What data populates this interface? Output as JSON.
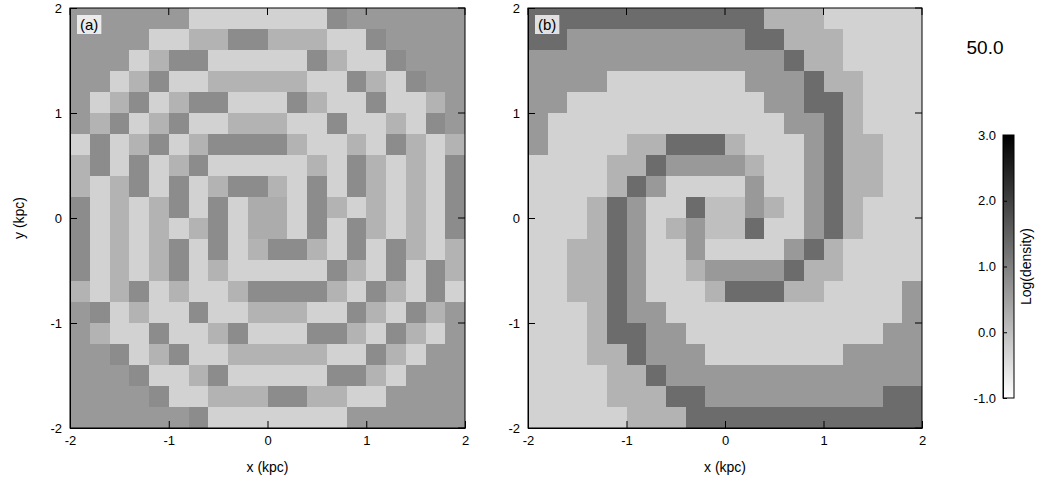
{
  "chart_data": [
    {
      "type": "heatmap",
      "title": "(a)",
      "xlabel": "x (kpc)",
      "ylabel": "y (kpc)",
      "xlim": [
        -2,
        2
      ],
      "ylim": [
        -2,
        2
      ],
      "xticks": [
        -2,
        -1,
        0,
        1,
        2
      ],
      "yticks": [
        -2,
        -1,
        0,
        1,
        2
      ],
      "x": [
        -1.9,
        -1.7,
        -1.5,
        -1.3,
        -1.1,
        -0.9,
        -0.7,
        -0.5,
        -0.3,
        -0.1,
        0.1,
        0.3,
        0.5,
        0.7,
        0.9,
        1.1,
        1.3,
        1.5,
        1.7,
        1.9
      ],
      "y": [
        1.9,
        1.7,
        1.5,
        1.3,
        1.1,
        0.9,
        0.7,
        0.5,
        0.3,
        0.1,
        -0.1,
        -0.3,
        -0.5,
        -0.7,
        -0.9,
        -1.1,
        -1.3,
        -1.5,
        -1.7,
        -1.9
      ],
      "z": [
        [
          0.6,
          0.6,
          0.6,
          0.6,
          0.6,
          0.6,
          -0.3,
          -0.3,
          -0.3,
          -0.3,
          -0.3,
          -0.3,
          -0.3,
          0.8,
          0.6,
          0.6,
          0.6,
          0.6,
          0.6,
          0.6
        ],
        [
          0.6,
          0.6,
          0.6,
          0.6,
          -0.3,
          -0.3,
          0.2,
          0.2,
          0.8,
          0.8,
          0.2,
          0.2,
          0.2,
          -0.3,
          -0.3,
          0.8,
          0.6,
          0.6,
          0.6,
          0.6
        ],
        [
          0.6,
          0.6,
          0.6,
          -0.3,
          0.2,
          0.8,
          0.8,
          -0.3,
          -0.3,
          -0.3,
          -0.3,
          -0.3,
          0.8,
          0.2,
          -0.3,
          -0.3,
          0.8,
          0.6,
          0.6,
          0.6
        ],
        [
          0.6,
          0.6,
          -0.3,
          0.2,
          0.8,
          -0.3,
          -0.3,
          0.2,
          0.2,
          0.2,
          0.2,
          0.2,
          -0.3,
          -0.3,
          0.8,
          0.2,
          -0.3,
          0.8,
          0.6,
          0.6
        ],
        [
          0.6,
          -0.3,
          0.2,
          0.8,
          -0.3,
          0.2,
          0.8,
          0.8,
          -0.3,
          -0.3,
          -0.3,
          0.8,
          0.2,
          -0.3,
          -0.3,
          0.8,
          -0.3,
          -0.3,
          0.2,
          0.6
        ],
        [
          0.6,
          0.2,
          0.8,
          -0.3,
          0.2,
          0.8,
          -0.3,
          -0.3,
          0.2,
          0.2,
          0.2,
          -0.3,
          -0.3,
          0.8,
          -0.3,
          -0.3,
          0.2,
          -0.3,
          0.8,
          0.6
        ],
        [
          -0.3,
          0.8,
          -0.3,
          0.2,
          0.8,
          -0.3,
          0.2,
          0.8,
          0.8,
          0.8,
          0.8,
          0.2,
          -0.3,
          -0.3,
          0.2,
          -0.3,
          0.8,
          0.2,
          -0.3,
          0.2
        ],
        [
          0.2,
          0.8,
          -0.3,
          0.8,
          -0.3,
          0.2,
          0.8,
          -0.3,
          -0.3,
          -0.3,
          -0.3,
          -0.3,
          0.2,
          -0.3,
          0.8,
          0.2,
          -0.3,
          0.2,
          -0.3,
          0.8
        ],
        [
          0.2,
          -0.3,
          0.2,
          0.8,
          -0.3,
          0.8,
          -0.3,
          0.2,
          0.8,
          0.8,
          0.2,
          -0.3,
          0.8,
          -0.3,
          0.8,
          0.2,
          -0.3,
          0.2,
          -0.3,
          0.8
        ],
        [
          0.8,
          -0.3,
          0.2,
          -0.3,
          0.2,
          0.8,
          -0.3,
          0.8,
          -0.3,
          0.3,
          0.3,
          -0.3,
          0.8,
          0.2,
          -0.3,
          0.2,
          -0.3,
          0.2,
          -0.3,
          0.8
        ],
        [
          0.8,
          -0.3,
          0.2,
          -0.3,
          0.2,
          -0.3,
          0.2,
          0.8,
          -0.3,
          0.3,
          0.3,
          -0.3,
          0.8,
          -0.3,
          0.8,
          0.2,
          -0.3,
          0.2,
          -0.3,
          0.8
        ],
        [
          0.8,
          -0.3,
          0.2,
          -0.3,
          0.2,
          0.8,
          -0.3,
          0.8,
          -0.3,
          0.2,
          0.8,
          0.8,
          0.2,
          -0.3,
          0.8,
          -0.3,
          0.8,
          0.2,
          -0.3,
          0.2
        ],
        [
          0.8,
          -0.3,
          0.2,
          -0.3,
          0.2,
          0.8,
          -0.3,
          0.2,
          -0.3,
          -0.3,
          -0.3,
          -0.3,
          -0.3,
          0.8,
          0.2,
          -0.3,
          0.8,
          -0.3,
          0.8,
          0.2
        ],
        [
          0.2,
          -0.3,
          0.2,
          0.8,
          -0.3,
          0.2,
          -0.3,
          -0.3,
          0.2,
          0.8,
          0.8,
          0.8,
          0.8,
          0.2,
          -0.3,
          0.8,
          0.2,
          -0.3,
          0.8,
          -0.3
        ],
        [
          0.6,
          0.8,
          -0.3,
          0.2,
          -0.3,
          -0.3,
          0.8,
          -0.3,
          -0.3,
          0.2,
          0.2,
          0.2,
          -0.3,
          -0.3,
          0.8,
          0.2,
          -0.3,
          0.8,
          0.2,
          0.6
        ],
        [
          0.6,
          0.2,
          -0.3,
          -0.3,
          0.8,
          -0.3,
          -0.3,
          0.2,
          0.8,
          -0.3,
          -0.3,
          -0.3,
          0.8,
          0.8,
          0.2,
          -0.3,
          0.8,
          0.2,
          -0.3,
          0.6
        ],
        [
          0.6,
          0.6,
          0.8,
          -0.3,
          0.2,
          0.8,
          -0.3,
          -0.3,
          0.2,
          0.2,
          0.2,
          0.2,
          0.2,
          -0.3,
          -0.3,
          0.8,
          0.2,
          -0.3,
          0.6,
          0.6
        ],
        [
          0.6,
          0.6,
          0.6,
          0.8,
          -0.3,
          -0.3,
          0.2,
          0.8,
          -0.3,
          -0.3,
          -0.3,
          -0.3,
          -0.3,
          0.8,
          0.8,
          0.2,
          -0.3,
          0.6,
          0.6,
          0.6
        ],
        [
          0.6,
          0.6,
          0.6,
          0.6,
          0.8,
          -0.3,
          -0.3,
          0.2,
          0.2,
          0.2,
          0.8,
          0.8,
          0.2,
          0.2,
          -0.3,
          -0.3,
          0.6,
          0.6,
          0.6,
          0.6
        ],
        [
          0.6,
          0.6,
          0.6,
          0.6,
          0.6,
          0.6,
          0.8,
          -0.3,
          -0.3,
          -0.3,
          -0.3,
          -0.3,
          -0.3,
          -0.3,
          0.6,
          0.6,
          0.6,
          0.6,
          0.6,
          0.6
        ]
      ]
    },
    {
      "type": "heatmap",
      "title": "(b)",
      "xlabel": "x (kpc)",
      "xlim": [
        -2,
        2
      ],
      "ylim": [
        -2,
        2
      ],
      "xticks": [
        -2,
        -1,
        0,
        1,
        2
      ],
      "yticks": [
        -2,
        -1,
        0,
        1,
        2
      ],
      "x": [
        -1.9,
        -1.7,
        -1.5,
        -1.3,
        -1.1,
        -0.9,
        -0.7,
        -0.5,
        -0.3,
        -0.1,
        0.1,
        0.3,
        0.5,
        0.7,
        0.9,
        1.1,
        1.3,
        1.5,
        1.7,
        1.9
      ],
      "y": [
        1.9,
        1.7,
        1.5,
        1.3,
        1.1,
        0.9,
        0.7,
        0.5,
        0.3,
        0.1,
        -0.1,
        -0.3,
        -0.5,
        -0.7,
        -0.9,
        -1.1,
        -1.3,
        -1.5,
        -1.7,
        -1.9
      ],
      "z": [
        [
          1.3,
          1.3,
          1.3,
          1.3,
          1.3,
          1.3,
          1.3,
          1.3,
          1.3,
          1.3,
          1.3,
          1.3,
          0.2,
          0.2,
          0.2,
          -0.3,
          -0.3,
          -0.3,
          -0.3,
          -0.3
        ],
        [
          1.3,
          1.3,
          0.6,
          0.6,
          0.6,
          0.6,
          0.6,
          0.6,
          0.6,
          0.6,
          0.6,
          1.3,
          1.3,
          0.2,
          0.2,
          0.2,
          -0.3,
          -0.3,
          -0.3,
          -0.3
        ],
        [
          0.6,
          0.6,
          0.6,
          0.6,
          0.6,
          0.6,
          0.6,
          0.6,
          0.6,
          0.6,
          0.6,
          0.6,
          0.6,
          1.3,
          0.2,
          0.2,
          -0.3,
          -0.3,
          -0.3,
          -0.3
        ],
        [
          0.6,
          0.6,
          0.6,
          0.6,
          -0.3,
          -0.3,
          -0.3,
          -0.3,
          -0.3,
          -0.3,
          -0.3,
          0.6,
          0.6,
          0.6,
          1.3,
          0.2,
          0.2,
          -0.3,
          -0.3,
          -0.3
        ],
        [
          0.6,
          0.6,
          -0.3,
          -0.3,
          -0.3,
          -0.3,
          -0.3,
          -0.3,
          -0.3,
          -0.3,
          -0.3,
          -0.3,
          0.6,
          0.6,
          1.3,
          1.3,
          0.2,
          -0.3,
          -0.3,
          -0.3
        ],
        [
          0.6,
          -0.3,
          -0.3,
          -0.3,
          -0.3,
          -0.3,
          -0.3,
          -0.3,
          -0.3,
          -0.3,
          -0.3,
          -0.3,
          -0.3,
          0.6,
          0.6,
          1.3,
          0.2,
          -0.3,
          -0.3,
          -0.3
        ],
        [
          0.6,
          -0.3,
          -0.3,
          -0.3,
          -0.3,
          0.2,
          0.2,
          1.3,
          1.3,
          1.3,
          0.2,
          -0.3,
          -0.3,
          -0.3,
          0.6,
          1.3,
          0.2,
          0.2,
          -0.3,
          -0.3
        ],
        [
          -0.3,
          -0.3,
          -0.3,
          -0.3,
          0.2,
          0.2,
          1.3,
          0.6,
          0.6,
          0.6,
          0.6,
          0.2,
          -0.3,
          -0.3,
          0.6,
          1.3,
          0.2,
          0.2,
          -0.3,
          -0.3
        ],
        [
          -0.3,
          -0.3,
          -0.3,
          -0.3,
          0.2,
          1.3,
          0.6,
          -0.3,
          -0.3,
          -0.3,
          -0.3,
          0.6,
          -0.3,
          -0.3,
          0.6,
          1.3,
          0.2,
          0.2,
          -0.3,
          -0.3
        ],
        [
          -0.3,
          -0.3,
          -0.3,
          0.2,
          1.3,
          0.6,
          -0.3,
          -0.3,
          1.3,
          0.0,
          0.0,
          0.6,
          0.2,
          -0.3,
          0.6,
          1.3,
          0.2,
          -0.3,
          -0.3,
          -0.3
        ],
        [
          -0.3,
          -0.3,
          -0.3,
          0.2,
          1.3,
          0.6,
          -0.3,
          0.2,
          0.6,
          0.0,
          0.0,
          1.3,
          -0.3,
          -0.3,
          0.6,
          1.3,
          0.2,
          -0.3,
          -0.3,
          -0.3
        ],
        [
          -0.3,
          -0.3,
          0.2,
          0.2,
          1.3,
          0.6,
          -0.3,
          -0.3,
          0.6,
          -0.3,
          -0.3,
          -0.3,
          -0.3,
          0.6,
          1.3,
          0.2,
          -0.3,
          -0.3,
          -0.3,
          -0.3
        ],
        [
          -0.3,
          -0.3,
          0.2,
          0.2,
          1.3,
          0.6,
          -0.3,
          -0.3,
          0.2,
          0.6,
          0.6,
          0.6,
          0.6,
          1.3,
          0.2,
          0.2,
          -0.3,
          -0.3,
          -0.3,
          -0.3
        ],
        [
          -0.3,
          -0.3,
          0.2,
          0.2,
          1.3,
          0.6,
          -0.3,
          -0.3,
          -0.3,
          0.2,
          1.3,
          1.3,
          1.3,
          0.2,
          0.2,
          -0.3,
          -0.3,
          -0.3,
          -0.3,
          0.6
        ],
        [
          -0.3,
          -0.3,
          -0.3,
          0.2,
          1.3,
          0.6,
          0.6,
          -0.3,
          -0.3,
          -0.3,
          -0.3,
          -0.3,
          -0.3,
          -0.3,
          -0.3,
          -0.3,
          -0.3,
          -0.3,
          -0.3,
          0.6
        ],
        [
          -0.3,
          -0.3,
          -0.3,
          0.2,
          1.3,
          1.3,
          0.6,
          0.6,
          -0.3,
          -0.3,
          -0.3,
          -0.3,
          -0.3,
          -0.3,
          -0.3,
          -0.3,
          -0.3,
          -0.3,
          0.6,
          0.6
        ],
        [
          -0.3,
          -0.3,
          -0.3,
          0.2,
          0.2,
          1.3,
          0.6,
          0.6,
          0.6,
          -0.3,
          -0.3,
          -0.3,
          -0.3,
          -0.3,
          -0.3,
          -0.3,
          0.6,
          0.6,
          0.6,
          0.6
        ],
        [
          -0.3,
          -0.3,
          -0.3,
          -0.3,
          0.2,
          0.2,
          1.3,
          0.6,
          0.6,
          0.6,
          0.6,
          0.6,
          0.6,
          0.6,
          0.6,
          0.6,
          0.6,
          0.6,
          0.6,
          0.6
        ],
        [
          -0.3,
          -0.3,
          -0.3,
          -0.3,
          0.2,
          0.2,
          0.2,
          1.3,
          1.3,
          0.6,
          0.6,
          0.6,
          0.6,
          0.6,
          0.6,
          0.6,
          0.6,
          0.6,
          1.3,
          1.3
        ],
        [
          -0.3,
          -0.3,
          -0.3,
          -0.3,
          -0.3,
          0.2,
          0.2,
          0.2,
          1.3,
          1.3,
          1.3,
          1.3,
          1.3,
          1.3,
          1.3,
          1.3,
          1.3,
          1.3,
          1.3,
          1.3
        ]
      ],
      "annotations": [
        "50.0"
      ],
      "colorbar": {
        "label": "Log(density)",
        "range": [
          -1,
          3
        ],
        "ticks": [
          {
            "value": -1,
            "label": "-1.0"
          },
          {
            "value": 0,
            "label": "0.0"
          },
          {
            "value": 1,
            "label": "1.0"
          },
          {
            "value": 2,
            "label": "2.0"
          },
          {
            "value": 3,
            "label": "3.0"
          }
        ]
      }
    }
  ]
}
